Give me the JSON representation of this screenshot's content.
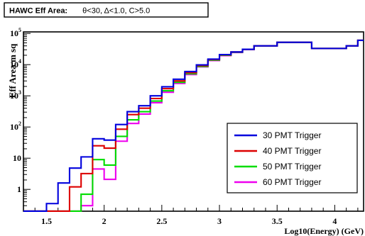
{
  "chart_data": {
    "type": "line",
    "title": "HAWC Eff Area:    θ<30, Δ<1.0, C>5.0",
    "title_parts": {
      "name": "HAWC Eff Area:",
      "cuts": "θ<30, Δ<1.0, C>5.0"
    },
    "xlabel": "Log10(Energy) (GeV)",
    "ylabel": "Eff Area m sq",
    "xlim": [
      1.3,
      4.25
    ],
    "ylim_log10": [
      -0.7,
      5.05
    ],
    "y_scale": "log",
    "x_ticks": [
      "1.5",
      "2",
      "2.5",
      "3",
      "3.5",
      "4"
    ],
    "x_tick_values": [
      1.5,
      2,
      2.5,
      3,
      3.5,
      4
    ],
    "y_ticks": [
      {
        "value": 1,
        "base": "1",
        "exp": ""
      },
      {
        "value": 10,
        "base": "10",
        "exp": ""
      },
      {
        "value": 100,
        "base": "10",
        "exp": "2"
      },
      {
        "value": 1000,
        "base": "10",
        "exp": "3"
      },
      {
        "value": 10000,
        "base": "10",
        "exp": "4"
      },
      {
        "value": 100000,
        "base": "10",
        "exp": "5"
      }
    ],
    "legend_position": "bottom-right",
    "bin_edges": [
      1.3,
      1.4,
      1.5,
      1.6,
      1.7,
      1.8,
      1.9,
      2.0,
      2.1,
      2.2,
      2.3,
      2.4,
      2.5,
      2.6,
      2.7,
      2.8,
      2.9,
      3.0,
      3.1,
      3.2,
      3.3,
      3.4,
      3.5,
      3.6,
      3.7,
      3.8,
      3.9,
      4.0,
      4.1,
      4.2,
      4.25
    ],
    "series": [
      {
        "name": "30 PMT Trigger",
        "color": "#0000dd",
        "values": [
          0.2,
          0.2,
          0.35,
          1.6,
          4.8,
          11,
          42,
          38,
          120,
          310,
          480,
          1000,
          1950,
          3400,
          6000,
          9800,
          15000,
          21000,
          25500,
          31000,
          40000,
          40000,
          52000,
          52000,
          52000,
          33000,
          33000,
          33000,
          40000,
          60000
        ]
      },
      {
        "name": "40 PMT Trigger",
        "color": "#dd0000",
        "values": [
          0.2,
          0.2,
          0.2,
          0.2,
          1.2,
          3.2,
          25,
          21,
          85,
          250,
          400,
          820,
          1700,
          3000,
          5500,
          9300,
          14500,
          20500,
          25500,
          31000,
          40000,
          40000,
          52000,
          52000,
          52000,
          33000,
          33000,
          33000,
          40000,
          60000
        ]
      },
      {
        "name": "50 PMT Trigger",
        "color": "#00dd00",
        "values": [
          0.2,
          0.2,
          0.2,
          0.2,
          0.2,
          0.7,
          9,
          6,
          50,
          170,
          310,
          680,
          1450,
          2700,
          5100,
          8800,
          14000,
          20000,
          25000,
          31000,
          40000,
          40000,
          52000,
          52000,
          52000,
          33000,
          33000,
          33000,
          40000,
          60000
        ]
      },
      {
        "name": "60 PMT Trigger",
        "color": "#ee00ee",
        "values": [
          0.2,
          0.2,
          0.2,
          0.2,
          0.2,
          0.3,
          4.5,
          2.1,
          35,
          130,
          260,
          600,
          1300,
          2500,
          4800,
          8500,
          13500,
          19500,
          24500,
          30500,
          40000,
          40000,
          52000,
          52000,
          52000,
          33000,
          33000,
          33000,
          40000,
          60000
        ]
      }
    ]
  }
}
